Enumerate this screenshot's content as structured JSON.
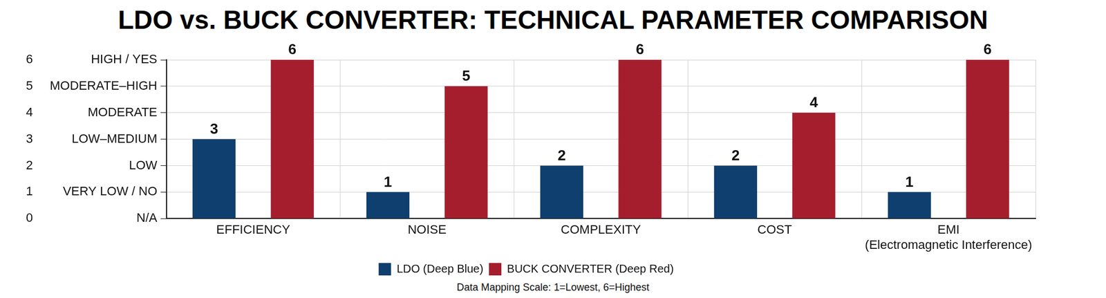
{
  "chart_data": {
    "type": "bar",
    "title": "LDO vs. BUCK CONVERTER: TECHNICAL PARAMETER COMPARISON",
    "categories": [
      "EFFICIENCY",
      "NOISE",
      "COMPLEXITY",
      "COST",
      "EMI\n(Electromagnetic Interference)"
    ],
    "series": [
      {
        "name": "LDO (Deep Blue)",
        "color": "#0f3f6e",
        "values": [
          3,
          1,
          2,
          2,
          1
        ]
      },
      {
        "name": "BUCK CONVERTER (Deep Red)",
        "color": "#a41e2e",
        "values": [
          6,
          5,
          6,
          4,
          6
        ]
      }
    ],
    "ylim": [
      0,
      6
    ],
    "yticks": [
      {
        "value": 0,
        "label": "N/A"
      },
      {
        "value": 1,
        "label": "VERY LOW / NO"
      },
      {
        "value": 2,
        "label": "LOW"
      },
      {
        "value": 3,
        "label": "LOW–MEDIUM"
      },
      {
        "value": 4,
        "label": "MODERATE"
      },
      {
        "value": 5,
        "label": "MODERATE–HIGH"
      },
      {
        "value": 6,
        "label": "HIGH / YES"
      }
    ],
    "grid": true,
    "legend": "bottom",
    "data_labels": true,
    "annotations": [
      "Data Mapping Scale: 1=Lowest, 6=Highest"
    ]
  }
}
